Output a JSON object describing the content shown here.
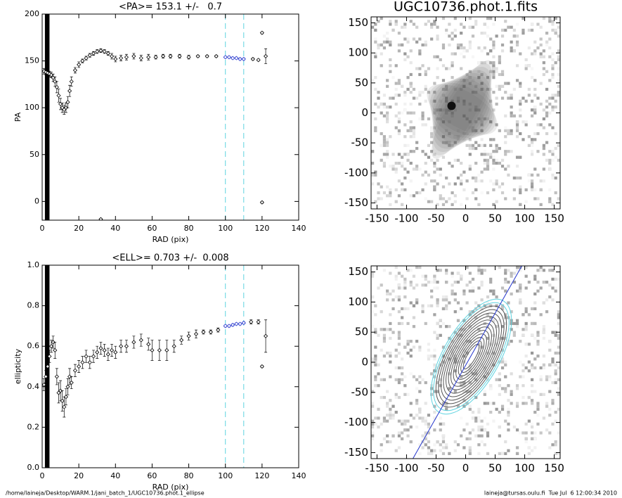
{
  "chart_data": [
    {
      "type": "scatter",
      "title": "<PA>= 153.1 +/-   0.7",
      "x_label": "RAD (pix)",
      "y_label": "PA",
      "xlim": [
        0,
        140
      ],
      "xticks": [
        0,
        20,
        40,
        60,
        80,
        100,
        120,
        140
      ],
      "ylim": [
        -20,
        200
      ],
      "yticks": [
        0,
        50,
        100,
        150,
        200
      ],
      "vlines": [
        100,
        110
      ],
      "vline_color": "#5fd3e0",
      "band": [
        1.5,
        4
      ],
      "series": [
        {
          "color": "#000000",
          "x": [
            1,
            2,
            3,
            4,
            5,
            6,
            7,
            8,
            9,
            10,
            11,
            12,
            13,
            14,
            15,
            16,
            18,
            20,
            22,
            24,
            26,
            28,
            30,
            32,
            34,
            36,
            38,
            40,
            43,
            46,
            50,
            54,
            58,
            62,
            66,
            70,
            75,
            80,
            85,
            90,
            95,
            115,
            118,
            120,
            120,
            122,
            32
          ],
          "values": [
            139,
            138,
            137,
            136,
            135,
            132,
            128,
            122,
            113,
            104,
            100,
            98,
            100,
            106,
            118,
            128,
            140,
            146,
            150,
            153,
            156,
            158,
            160,
            161,
            160,
            158,
            155,
            152,
            153,
            154,
            155,
            153,
            154,
            154,
            155,
            155,
            155,
            154,
            155,
            155,
            155,
            152,
            151,
            180,
            -1,
            155,
            -19
          ],
          "errors": [
            3,
            3,
            3,
            3,
            3,
            4,
            5,
            6,
            7,
            6,
            5,
            5,
            5,
            6,
            6,
            5,
            3,
            3,
            2,
            2,
            2,
            2,
            2,
            2,
            2,
            2,
            3,
            3,
            3,
            3,
            3,
            3,
            3,
            2,
            2,
            2,
            2,
            2,
            1,
            1,
            1,
            1,
            1,
            1,
            1,
            8,
            1
          ]
        },
        {
          "color": "#2233cc",
          "x": [
            100,
            102,
            104,
            106,
            108,
            110
          ],
          "values": [
            154,
            154,
            153,
            153,
            152,
            152
          ],
          "errors": [
            1,
            1,
            1,
            1,
            1,
            1
          ]
        }
      ]
    },
    {
      "type": "scatter",
      "title": "<ELL>= 0.703 +/-  0.008",
      "x_label": "RAD (pix)",
      "y_label": "ellipticity",
      "xlim": [
        0,
        140
      ],
      "xticks": [
        0,
        20,
        40,
        60,
        80,
        100,
        120,
        140
      ],
      "ylim": [
        0,
        1
      ],
      "yticks": [
        {
          "value": 0,
          "label": "0.0"
        },
        0.2,
        0.4,
        0.6,
        0.8,
        {
          "value": 1,
          "label": "1.0"
        }
      ],
      "vlines": [
        100,
        110
      ],
      "vline_color": "#5fd3e0",
      "band": [
        1.5,
        4
      ],
      "series": [
        {
          "color": "#000000",
          "x": [
            1,
            2,
            3,
            4,
            5,
            6,
            7,
            8,
            9,
            10,
            11,
            12,
            13,
            14,
            15,
            16,
            18,
            20,
            22,
            24,
            26,
            28,
            30,
            32,
            34,
            36,
            38,
            40,
            43,
            46,
            50,
            54,
            58,
            60,
            64,
            68,
            72,
            76,
            80,
            84,
            88,
            92,
            96,
            114,
            118,
            120,
            122
          ],
          "values": [
            0.41,
            0.45,
            0.5,
            0.55,
            0.6,
            0.62,
            0.58,
            0.45,
            0.37,
            0.38,
            0.33,
            0.3,
            0.35,
            0.4,
            0.45,
            0.42,
            0.48,
            0.5,
            0.52,
            0.55,
            0.52,
            0.55,
            0.57,
            0.59,
            0.58,
            0.56,
            0.58,
            0.57,
            0.6,
            0.6,
            0.62,
            0.63,
            0.61,
            0.58,
            0.58,
            0.58,
            0.6,
            0.63,
            0.65,
            0.66,
            0.67,
            0.67,
            0.68,
            0.72,
            0.72,
            0.5,
            0.65
          ],
          "errors": [
            0.03,
            0.03,
            0.03,
            0.03,
            0.03,
            0.03,
            0.04,
            0.04,
            0.05,
            0.05,
            0.05,
            0.05,
            0.04,
            0.04,
            0.04,
            0.03,
            0.03,
            0.03,
            0.03,
            0.03,
            0.03,
            0.03,
            0.03,
            0.03,
            0.03,
            0.03,
            0.03,
            0.03,
            0.03,
            0.03,
            0.03,
            0.03,
            0.03,
            0.05,
            0.05,
            0.05,
            0.03,
            0.02,
            0.02,
            0.02,
            0.01,
            0.01,
            0.01,
            0.01,
            0.01,
            0.005,
            0.08
          ]
        },
        {
          "color": "#2233cc",
          "x": [
            100,
            102,
            104,
            106,
            108,
            110
          ],
          "values": [
            0.7,
            0.7,
            0.705,
            0.71,
            0.71,
            0.715
          ],
          "errors": [
            0.005,
            0.005,
            0.005,
            0.005,
            0.005,
            0.005
          ]
        }
      ]
    },
    {
      "type": "image",
      "title": "UGC10736.phot.1.fits",
      "xlim": [
        -160,
        160
      ],
      "xticks": [
        -150,
        -100,
        -50,
        0,
        50,
        100,
        150
      ],
      "ylim": [
        -160,
        160
      ],
      "yticks": [
        -150,
        -100,
        -50,
        0,
        50,
        100,
        150
      ]
    },
    {
      "type": "image",
      "xlim": [
        -160,
        160
      ],
      "xticks": [
        -150,
        -100,
        -50,
        0,
        50,
        100,
        150
      ],
      "ylim": [
        -160,
        160
      ],
      "yticks": [
        -150,
        -100,
        -50,
        0,
        50,
        100,
        150
      ]
    }
  ],
  "footer": {
    "left": "/home/laineja/Desktop/WARM.1/jani_batch_1/UGC10736.phot.1_ellipse",
    "right": "laineja@tursas.oulu.fi  Tue Jul  6 12:00:34 2010"
  }
}
